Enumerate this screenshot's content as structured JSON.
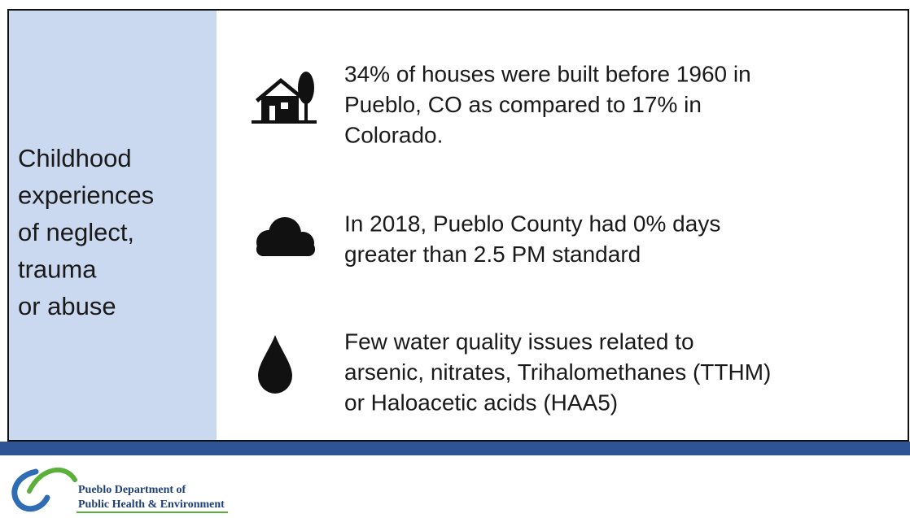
{
  "side_label": {
    "lines": [
      "Childhood",
      "experiences",
      "of neglect,",
      "trauma",
      "or abuse"
    ]
  },
  "items": [
    {
      "lines": [
        "34% of houses were built before 1960 in",
        "Pueblo, CO as compared to 17% in",
        "Colorado."
      ]
    },
    {
      "lines": [
        "In 2018, Pueblo County had 0% days",
        "greater than 2.5 PM standard"
      ]
    },
    {
      "lines": [
        "Few water quality issues related to",
        "arsenic, nitrates, Trihalomethanes (TTHM)",
        "or Haloacetic acids (HAA5)"
      ]
    }
  ],
  "footer": {
    "logo_lines": [
      "Pueblo Department of",
      "Public Health & Environment"
    ]
  }
}
